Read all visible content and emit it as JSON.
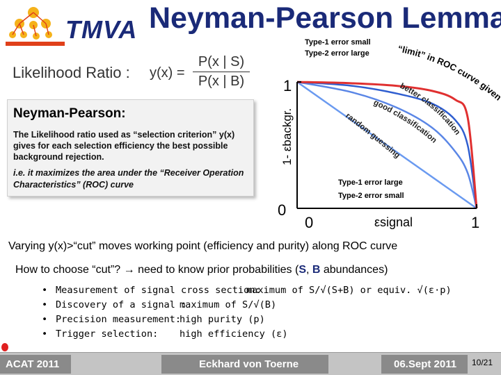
{
  "header": {
    "logo_text": "TMVA",
    "title": "Neyman-Pearson Lemma"
  },
  "likelihood": {
    "label": "Likelihood Ratio :",
    "lhs": "y(x) =",
    "numerator": "P(x | S)",
    "denominator": "P(x | B)"
  },
  "box": {
    "heading": "Neyman-Pearson:",
    "paragraph": "The Likelihood ratio used as “selection criterion” y(x) gives for each selection efficiency the best possible background rejection.",
    "paragraph2": "i.e. it maximizes the area under the “Receiver Operation Characteristics” (ROC) curve"
  },
  "chart_data": {
    "type": "line",
    "xlabel": "εsignal",
    "ylabel": "1- εbackgr.",
    "x_ticks": [
      "0",
      "1"
    ],
    "y_ticks": [
      "0",
      "1"
    ],
    "xlim": [
      0,
      1
    ],
    "ylim": [
      0,
      1
    ],
    "annotations": {
      "top_left_1": "Type-1 error small",
      "top_left_2": "Type-2 error large",
      "bottom_right_1": "Type-1 error large",
      "bottom_right_2": "Type-2 error small",
      "limit": "“limit” in ROC curve given by likelihood ratio",
      "better": "better classification",
      "good": "good classification",
      "random": "random guessing"
    },
    "series": [
      {
        "name": "“limit” in ROC curve given by likelihood ratio",
        "color": "#e03030",
        "x": [
          0,
          0.3,
          0.55,
          0.75,
          0.88,
          0.95,
          1.0
        ],
        "y": [
          1.0,
          0.99,
          0.97,
          0.93,
          0.86,
          0.72,
          0
        ]
      },
      {
        "name": "better classification",
        "color": "#2f5ed0",
        "x": [
          0,
          0.3,
          0.55,
          0.75,
          0.88,
          0.95,
          1.0
        ],
        "y": [
          1.0,
          0.97,
          0.91,
          0.83,
          0.7,
          0.5,
          0
        ]
      },
      {
        "name": "good classification",
        "color": "#5a86e6",
        "x": [
          0,
          0.3,
          0.55,
          0.75,
          0.88,
          0.95,
          1.0
        ],
        "y": [
          1.0,
          0.92,
          0.8,
          0.64,
          0.45,
          0.28,
          0
        ]
      },
      {
        "name": "random guessing",
        "color": "#6a9af0",
        "x": [
          0,
          1
        ],
        "y": [
          1,
          0
        ]
      }
    ]
  },
  "body": {
    "line1": "Varying y(x)>“cut” moves working point (efficiency and purity) along ROC curve",
    "line2_a": "How to choose “cut”? ",
    "line2_arrow": "→",
    "line2_b": " need to know prior probabilities (",
    "line2_s": "S",
    "line2_c": ", ",
    "line2_bg": "B",
    "line2_d": " abundances)",
    "bullets": [
      {
        "a": "Measurement of signal cross section:",
        "b": "maximum of S/√(S+B) or equiv. √(ε·p)"
      },
      {
        "a": "Discovery of a signal :",
        "b": "maximum of S/√(B)"
      },
      {
        "a": "Precision measurement:",
        "b": "high purity (p)"
      },
      {
        "a": "Trigger selection:",
        "b": "high efficiency (ε)"
      }
    ]
  },
  "footer": {
    "left": "ACAT 2011",
    "center": "Eckhard von Toerne",
    "right": "06.Sept 2011",
    "page": "10/21"
  }
}
